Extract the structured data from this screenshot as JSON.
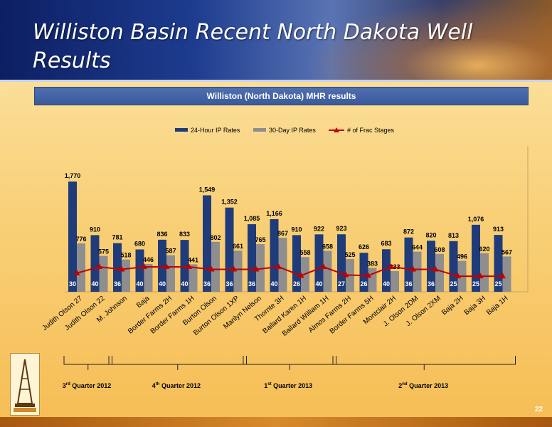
{
  "slide": {
    "title": "Williston Basin Recent North Dakota Well Results",
    "subtitle": "Williston (North Dakota) MHR results",
    "page_number": "22",
    "icons": [
      "derrick-logo-icon"
    ],
    "colors": {
      "bar_24hr": "#1f3b7a",
      "bar_30day": "#8e8e8e",
      "frac_line": "#c00000"
    }
  },
  "chart_data": {
    "type": "bar",
    "categories": [
      "Judith Olson 27",
      "Judith Olson 22",
      "M. Johnson",
      "Baja",
      "Border Farms 2H",
      "Border Farms 1H",
      "Burton Olson",
      "Burton Olson 1XP",
      "Marilyn Nelson",
      "Thornte 3H",
      "Bailard Karen 1H",
      "Bailard William 1H",
      "Almos Farms 2H",
      "Border Farms 5H",
      "Montclair 2H",
      "J. Olson 2DM",
      "J. Olson 2XM",
      "Baja 2H",
      "Baja 3H",
      "Baja 1H"
    ],
    "series": [
      {
        "name": "24-Hour IP Rates",
        "type": "bar",
        "values": [
          1770,
          910,
          781,
          680,
          836,
          833,
          1549,
          1352,
          1085,
          1166,
          910,
          922,
          923,
          626,
          683,
          872,
          820,
          813,
          1076,
          913
        ]
      },
      {
        "name": "30-Day IP Rates",
        "type": "bar",
        "values": [
          776,
          575,
          518,
          446,
          587,
          441,
          802,
          661,
          765,
          867,
          558,
          658,
          525,
          383,
          333,
          644,
          608,
          496,
          620,
          567
        ]
      },
      {
        "name": "# of Frac Stages",
        "type": "line",
        "values": [
          30,
          40,
          36,
          40,
          40,
          40,
          36,
          36,
          36,
          40,
          26,
          40,
          27,
          26,
          40,
          36,
          36,
          25,
          25,
          25
        ]
      }
    ],
    "value_labels": {
      "bar24": [
        "1,770",
        "910",
        "781",
        "680",
        "836",
        "833",
        "1,549",
        "1,352",
        "1,085",
        "1,166",
        "910",
        "922",
        "923",
        "626",
        "683",
        "872",
        "820",
        "813",
        "1,076",
        "913"
      ],
      "bar30": [
        "776",
        "575",
        "518",
        "446",
        "587",
        "441",
        "802",
        "661",
        "765",
        "867",
        "558",
        "658",
        "525",
        "383",
        "333",
        "644",
        "608",
        "496",
        "620",
        "567"
      ],
      "frac": [
        "30",
        "40",
        "36",
        "40",
        "40",
        "40",
        "36",
        "36",
        "36",
        "40",
        "26",
        "40",
        "27",
        "26",
        "40",
        "36",
        "36",
        "25",
        "25",
        "25"
      ]
    },
    "ylim": [
      0,
      2000
    ],
    "line_ylim": [
      0,
      200
    ],
    "grid": false,
    "legend_position": "top-center",
    "groups": [
      {
        "ordinal": "3",
        "suffix": "rd",
        "label": "Quarter 2012",
        "from": 0,
        "to": 1
      },
      {
        "ordinal": "4",
        "suffix": "th",
        "label": "Quarter 2012",
        "from": 2,
        "to": 7
      },
      {
        "ordinal": "1",
        "suffix": "st",
        "label": "Quarter 2013",
        "from": 8,
        "to": 11
      },
      {
        "ordinal": "2",
        "suffix": "nd",
        "label": "Quarter 2013",
        "from": 12,
        "to": 19
      }
    ]
  }
}
